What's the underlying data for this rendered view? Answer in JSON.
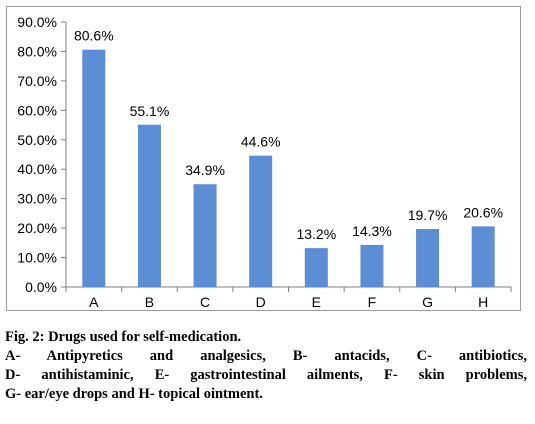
{
  "chart_data": {
    "type": "bar",
    "categories": [
      "A",
      "B",
      "C",
      "D",
      "E",
      "F",
      "G",
      "H"
    ],
    "values": [
      80.6,
      55.1,
      34.9,
      44.6,
      13.2,
      14.3,
      19.7,
      20.6
    ],
    "data_labels": [
      "80.6%",
      "55.1%",
      "34.9%",
      "44.6%",
      "13.2%",
      "14.3%",
      "19.7%",
      "20.6%"
    ],
    "y_ticks": [
      0,
      10,
      20,
      30,
      40,
      50,
      60,
      70,
      80,
      90
    ],
    "y_tick_labels": [
      "0.0%",
      "10.0%",
      "20.0%",
      "30.0%",
      "40.0%",
      "50.0%",
      "60.0%",
      "70.0%",
      "80.0%",
      "90.0%"
    ],
    "ylim": [
      0,
      90
    ],
    "bar_color": "#5B8ED5",
    "grid": false,
    "legend": "none"
  },
  "caption": {
    "title": "Fig. 2: Drugs used for self-medication.",
    "lines": [
      "A- Antipyretics and analgesics, B- antacids, C- antibiotics,",
      "D- antihistaminic, E- gastrointestinal ailments, F- skin problems,",
      "G- ear/eye drops and H- topical ointment."
    ]
  }
}
